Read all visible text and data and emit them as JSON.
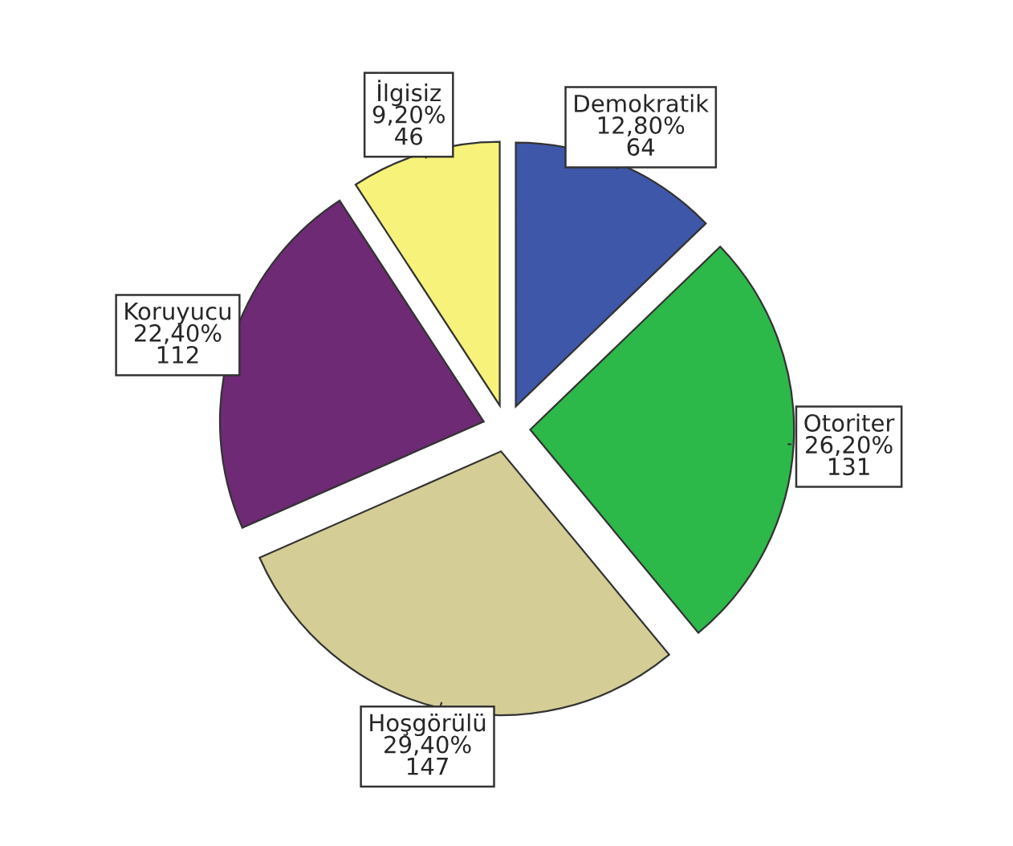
{
  "chart_data": {
    "type": "pie",
    "categories": [
      "Demokratik",
      "Otoriter",
      "Hoşgörülü",
      "Koruyucu",
      "İlgisiz"
    ],
    "values": [
      12.8,
      26.2,
      29.4,
      22.4,
      9.2
    ],
    "value_labels": [
      "12,80%\n64",
      "26,20%\n131",
      "29,40%\n147",
      "22,40%\n112",
      "9,20%\n46"
    ],
    "colors": [
      "#3f57a8",
      "#2db84a",
      "#d4cd96",
      "#6e2a74",
      "#f7f27a"
    ],
    "legend": false
  }
}
